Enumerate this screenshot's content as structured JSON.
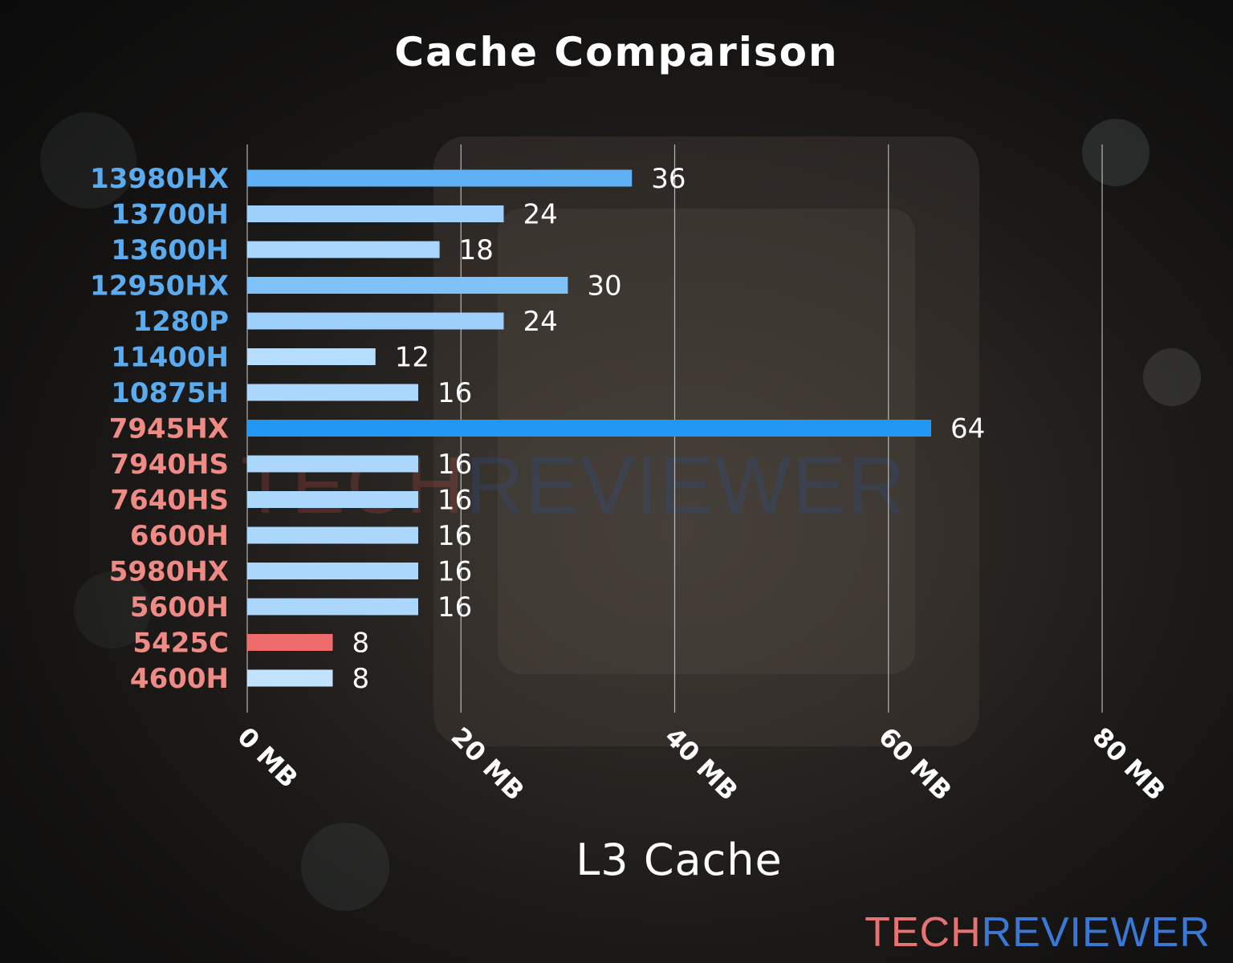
{
  "chart_data": {
    "type": "bar",
    "orientation": "horizontal",
    "title": "Cache Comparison",
    "xlabel": "L3 Cache",
    "ylabel": "",
    "xlim": [
      0,
      80
    ],
    "x_ticks": [
      "0 MB",
      "20 MB",
      "40 MB",
      "60 MB",
      "80 MB"
    ],
    "x_tick_values": [
      0,
      20,
      40,
      60,
      80
    ],
    "grid": "vertical",
    "categories": [
      "13980HX",
      "13700H",
      "13600H",
      "12950HX",
      "1280P",
      "11400H",
      "10875H",
      "7945HX",
      "7940HS",
      "7640HS",
      "6600H",
      "5980HX",
      "5600H",
      "5425C",
      "4600H"
    ],
    "values": [
      36,
      24,
      18,
      30,
      24,
      12,
      16,
      64,
      16,
      16,
      16,
      16,
      16,
      8,
      8
    ],
    "category_colors": [
      "#5aabf0",
      "#5aabf0",
      "#5aabf0",
      "#5aabf0",
      "#5aabf0",
      "#5aabf0",
      "#5aabf0",
      "#f08a84",
      "#f08a84",
      "#f08a84",
      "#f08a84",
      "#f08a84",
      "#f08a84",
      "#f08a84",
      "#f08a84"
    ],
    "bar_colors": [
      "#5fb0f5",
      "#9fd0fb",
      "#a9d6fc",
      "#7ec2f9",
      "#9fd0fb",
      "#b6ddfc",
      "#abd7fc",
      "#2196f3",
      "#abd7fc",
      "#abd7fc",
      "#abd7fc",
      "#abd7fc",
      "#abd7fc",
      "#ef6c6c",
      "#c2e3fd"
    ]
  },
  "branding": {
    "watermark": [
      "TECH",
      "REVIEWER"
    ],
    "logo": [
      "TECH",
      "REVIEWER"
    ]
  }
}
